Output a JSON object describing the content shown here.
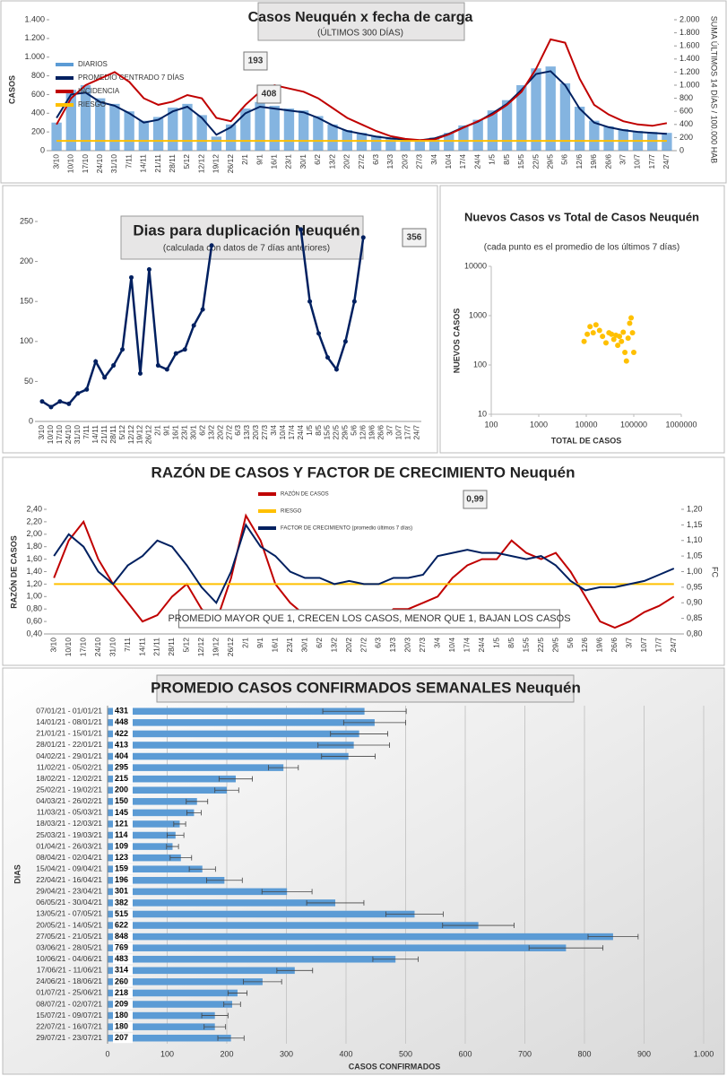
{
  "chart_data": [
    {
      "type": "line",
      "title": "Casos  Neuquén  x fecha  de carga",
      "subtitle": "(ÚLTIMOS 300 DÍAS)",
      "y_label": "CASOS",
      "y2_label": "SUMA  ÚLTIMOS 14 DÍAS / 100.000 HAB",
      "categories": [
        "3/10",
        "10/10",
        "17/10",
        "24/10",
        "31/10",
        "7/11",
        "14/11",
        "21/11",
        "28/11",
        "5/12",
        "12/12",
        "19/12",
        "26/12",
        "2/1",
        "9/1",
        "16/1",
        "23/1",
        "30/1",
        "6/2",
        "13/2",
        "20/2",
        "27/2",
        "6/3",
        "13/3",
        "20/3",
        "27/3",
        "3/4",
        "10/4",
        "17/4",
        "24/4",
        "1/5",
        "8/5",
        "15/5",
        "22/5",
        "29/5",
        "5/6",
        "12/6",
        "19/6",
        "26/6",
        "3/7",
        "10/7",
        "17/7",
        "24/7"
      ],
      "ylim": [
        0,
        1400
      ],
      "yticks": [
        0,
        200,
        400,
        600,
        800,
        {
          "value": 1000,
          "label": "1.000"
        },
        {
          "value": 1200,
          "label": "1.200"
        },
        {
          "value": 1400,
          "label": "1.400"
        }
      ],
      "y2lim": [
        0,
        2000
      ],
      "y2ticks": [
        0,
        200,
        400,
        600,
        800,
        {
          "value": 1000,
          "label": "1.000"
        },
        {
          "value": 1200,
          "label": "1.200"
        },
        {
          "value": 1400,
          "label": "1.400"
        },
        {
          "value": 1600,
          "label": "1.600"
        },
        {
          "value": 1800,
          "label": "1.800"
        },
        {
          "value": 2000,
          "label": "2.000"
        }
      ],
      "annotations": [
        "193",
        "408"
      ],
      "series": [
        {
          "name": "DIARIOS",
          "kind": "bar",
          "color": "#5b9bd5",
          "values": [
            300,
            650,
            700,
            560,
            500,
            420,
            320,
            360,
            460,
            500,
            380,
            150,
            280,
            450,
            520,
            480,
            450,
            430,
            370,
            280,
            220,
            190,
            160,
            140,
            120,
            110,
            140,
            190,
            270,
            330,
            430,
            540,
            700,
            880,
            900,
            720,
            470,
            320,
            260,
            230,
            210,
            200,
            190
          ]
        },
        {
          "name": "PROMEDIO CENTRADO 7 DÍAS",
          "color": "#002060",
          "values": [
            350,
            600,
            620,
            520,
            480,
            400,
            300,
            330,
            420,
            470,
            350,
            170,
            250,
            400,
            470,
            450,
            430,
            410,
            350,
            270,
            210,
            180,
            150,
            130,
            120,
            110,
            130,
            180,
            250,
            310,
            400,
            500,
            650,
            820,
            850,
            700,
            450,
            300,
            250,
            220,
            200,
            190,
            180
          ]
        },
        {
          "name": "INCIDENCIA",
          "color": "#c00000",
          "axis": "y2",
          "values": [
            400,
            800,
            1000,
            1100,
            1200,
            1050,
            800,
            700,
            750,
            850,
            800,
            500,
            450,
            700,
            900,
            1000,
            950,
            900,
            800,
            650,
            500,
            400,
            300,
            220,
            180,
            160,
            170,
            250,
            350,
            450,
            550,
            700,
            900,
            1250,
            1700,
            1650,
            1100,
            700,
            550,
            450,
            400,
            380,
            420
          ]
        },
        {
          "name": "RIESGO",
          "color": "#ffc000",
          "axis": "y2",
          "values": [
            150,
            150,
            150,
            150,
            150,
            150,
            150,
            150,
            150,
            150,
            150,
            150,
            150,
            150,
            150,
            150,
            150,
            150,
            150,
            150,
            150,
            150,
            150,
            150,
            150,
            150,
            150,
            150,
            150,
            150,
            150,
            150,
            150,
            150,
            150,
            150,
            150,
            150,
            150,
            150,
            150,
            150,
            150
          ]
        }
      ]
    },
    {
      "type": "line",
      "title": "Dias para duplicación Neuquén",
      "subtitle": "(calculada con datos de 7 días anteriores)",
      "categories": [
        "3/10",
        "10/10",
        "17/10",
        "24/10",
        "31/10",
        "7/11",
        "14/11",
        "21/11",
        "28/11",
        "5/12",
        "12/12",
        "19/12",
        "26/12",
        "2/1",
        "9/1",
        "16/1",
        "23/1",
        "30/1",
        "6/2",
        "13/2",
        "20/2",
        "27/2",
        "6/3",
        "13/3",
        "20/3",
        "27/3",
        "3/4",
        "10/4",
        "17/4",
        "24/4",
        "1/5",
        "8/5",
        "15/5",
        "22/5",
        "29/5",
        "5/6",
        "12/6",
        "19/6",
        "26/6",
        "3/7",
        "10/7",
        "17/7",
        "24/7"
      ],
      "ylim": [
        0,
        250
      ],
      "yticks": [
        0,
        50,
        100,
        150,
        200,
        250
      ],
      "annotations": [
        "356"
      ],
      "series": [
        {
          "color": "#002060",
          "values": [
            25,
            18,
            25,
            22,
            35,
            40,
            75,
            55,
            70,
            90,
            180,
            60,
            190,
            70,
            65,
            85,
            90,
            120,
            140,
            220,
            null,
            null,
            null,
            null,
            null,
            null,
            null,
            null,
            null,
            240,
            150,
            110,
            80,
            65,
            100,
            150,
            230,
            null,
            null,
            null,
            null,
            null,
            null
          ]
        }
      ]
    },
    {
      "type": "scatter",
      "title": "Nuevos Casos vs Total de Casos Neuquén",
      "subtitle": "(cada punto es el promedio de los últimos 7 días)",
      "x_label": "TOTAL DE CASOS",
      "y_label": "NUEVOS CASOS",
      "log_scale": true,
      "color": "#ffc000",
      "xlim": [
        100,
        1000000
      ],
      "xticks": [
        100,
        1000,
        10000,
        100000,
        1000000
      ],
      "ylim": [
        10,
        10000
      ],
      "yticks": [
        10,
        100,
        1000,
        10000
      ],
      "x": [
        9000,
        10500,
        12000,
        14000,
        16000,
        19000,
        22000,
        26000,
        30000,
        34000,
        38000,
        42000,
        46000,
        50000,
        55000,
        60000,
        65000,
        70000,
        76000,
        82000,
        88000,
        94000,
        100000
      ],
      "y": [
        300,
        420,
        600,
        450,
        650,
        500,
        380,
        280,
        450,
        420,
        330,
        400,
        250,
        380,
        300,
        460,
        180,
        120,
        350,
        700,
        900,
        450,
        180
      ]
    },
    {
      "type": "line",
      "title": "RAZÓN DE CASOS Y FACTOR DE CRECIMIENTO Neuquén",
      "y_label": "RAZÓN DE CASOS",
      "y2_label": "FC",
      "categories": [
        "3/10",
        "10/10",
        "17/10",
        "24/10",
        "31/10",
        "7/11",
        "14/11",
        "21/11",
        "28/11",
        "5/12",
        "12/12",
        "19/12",
        "26/12",
        "2/1",
        "9/1",
        "16/1",
        "23/1",
        "30/1",
        "6/2",
        "13/2",
        "20/2",
        "27/2",
        "6/3",
        "13/3",
        "20/3",
        "27/3",
        "3/4",
        "10/4",
        "17/4",
        "24/4",
        "1/5",
        "8/5",
        "15/5",
        "22/5",
        "29/5",
        "5/6",
        "12/6",
        "19/6",
        "26/6",
        "3/7",
        "10/7",
        "17/7",
        "24/7"
      ],
      "ylim": [
        0.4,
        2.4
      ],
      "yticks": [
        {
          "value": 0.4,
          "label": "0,40"
        },
        {
          "value": 0.6,
          "label": "0,60"
        },
        {
          "value": 0.8,
          "label": "0,80"
        },
        {
          "value": 1.0,
          "label": "1,00"
        },
        {
          "value": 1.2,
          "label": "1,20"
        },
        {
          "value": 1.4,
          "label": "1,40"
        },
        {
          "value": 1.6,
          "label": "1,60"
        },
        {
          "value": 1.8,
          "label": "1,80"
        },
        {
          "value": 2.0,
          "label": "2,00"
        },
        {
          "value": 2.2,
          "label": "2,20"
        },
        {
          "value": 2.4,
          "label": "2,40"
        }
      ],
      "y2lim": [
        0.8,
        1.2
      ],
      "y2ticks": [
        {
          "value": 0.8,
          "label": "0,80"
        },
        {
          "value": 0.85,
          "label": "0,85"
        },
        {
          "value": 0.9,
          "label": "0,90"
        },
        {
          "value": 0.95,
          "label": "0,95"
        },
        {
          "value": 1.0,
          "label": "1,00"
        },
        {
          "value": 1.05,
          "label": "1,05"
        },
        {
          "value": 1.1,
          "label": "1,10"
        },
        {
          "value": 1.15,
          "label": "1,15"
        },
        {
          "value": 1.2,
          "label": "1,20"
        }
      ],
      "annotations": [
        "0,99",
        "PROMEDIO MAYOR QUE 1, CRECEN LOS CASOS, MENOR QUE 1, BAJAN LOS CASOS"
      ],
      "series": [
        {
          "name": "RAZÓN DE CASOS",
          "color": "#c00000",
          "values": [
            1.3,
            1.9,
            2.2,
            1.6,
            1.2,
            0.9,
            0.6,
            0.7,
            1.0,
            1.2,
            0.8,
            0.6,
            1.3,
            2.3,
            1.9,
            1.2,
            0.9,
            0.7,
            0.7,
            0.6,
            0.6,
            0.6,
            0.6,
            0.8,
            0.8,
            0.9,
            1.0,
            1.3,
            1.5,
            1.6,
            1.6,
            1.9,
            1.7,
            1.6,
            1.7,
            1.4,
            1.0,
            0.6,
            0.5,
            0.6,
            0.75,
            0.85,
            1.0
          ]
        },
        {
          "name": "RIESGO",
          "color": "#ffc000",
          "values": [
            1.2,
            1.2,
            1.2,
            1.2,
            1.2,
            1.2,
            1.2,
            1.2,
            1.2,
            1.2,
            1.2,
            1.2,
            1.2,
            1.2,
            1.2,
            1.2,
            1.2,
            1.2,
            1.2,
            1.2,
            1.2,
            1.2,
            1.2,
            1.2,
            1.2,
            1.2,
            1.2,
            1.2,
            1.2,
            1.2,
            1.2,
            1.2,
            1.2,
            1.2,
            1.2,
            1.2,
            1.2,
            1.2,
            1.2,
            1.2,
            1.2,
            1.2,
            1.2
          ]
        },
        {
          "name": "FACTOR DE CRECIMIENTO (promedio últimos 7 días)",
          "color": "#002060",
          "axis": "y2",
          "values": [
            1.05,
            1.12,
            1.08,
            1.0,
            0.96,
            1.02,
            1.05,
            1.1,
            1.08,
            1.02,
            0.95,
            0.9,
            1.0,
            1.15,
            1.08,
            1.05,
            1.0,
            0.98,
            0.98,
            0.96,
            0.97,
            0.96,
            0.96,
            0.98,
            0.98,
            0.99,
            1.05,
            1.06,
            1.07,
            1.06,
            1.06,
            1.05,
            1.04,
            1.05,
            1.02,
            0.97,
            0.94,
            0.95,
            0.95,
            0.96,
            0.97,
            0.99,
            1.01
          ]
        }
      ]
    },
    {
      "type": "bar",
      "orientation": "horizontal",
      "title": "PROMEDIO CASOS CONFIRMADOS SEMANALES Neuquén",
      "x_label": "CASOS CONFIRMADOS",
      "y_label": "DIAS",
      "color": "#5b9bd5",
      "grid": true,
      "categories": [
        "07/01/21 - 01/01/21",
        "14/01/21 - 08/01/21",
        "21/01/21 - 15/01/21",
        "28/01/21 - 22/01/21",
        "04/02/21 - 29/01/21",
        "11/02/21 - 05/02/21",
        "18/02/21 - 12/02/21",
        "25/02/21 - 19/02/21",
        "04/03/21 - 26/02/21",
        "11/03/21 - 05/03/21",
        "18/03/21 - 12/03/21",
        "25/03/21 - 19/03/21",
        "01/04/21 - 26/03/21",
        "08/04/21 - 02/04/21",
        "15/04/21 - 09/04/21",
        "22/04/21 - 16/04/21",
        "29/04/21 - 23/04/21",
        "06/05/21 - 30/04/21",
        "13/05/21 - 07/05/21",
        "20/05/21 - 14/05/21",
        "27/05/21 - 21/05/21",
        "03/06/21 - 28/05/21",
        "10/06/21 - 04/06/21",
        "17/06/21 - 11/06/21",
        "24/06/21 - 18/06/21",
        "01/07/21 - 25/06/21",
        "08/07/21 - 02/07/21",
        "15/07/21 - 09/07/21",
        "22/07/21 - 16/07/21",
        "29/07/21 - 23/07/21"
      ],
      "values": [
        431,
        448,
        422,
        413,
        404,
        295,
        215,
        200,
        150,
        145,
        121,
        114,
        109,
        123,
        159,
        196,
        301,
        382,
        515,
        622,
        848,
        769,
        483,
        314,
        260,
        218,
        209,
        180,
        180,
        207
      ],
      "errors": [
        70,
        52,
        48,
        60,
        45,
        25,
        28,
        20,
        18,
        12,
        10,
        14,
        10,
        18,
        22,
        30,
        42,
        48,
        48,
        60,
        42,
        62,
        38,
        30,
        32,
        16,
        14,
        22,
        18,
        22
      ],
      "xlim": [
        0,
        1000
      ],
      "xticks": [
        0,
        100,
        200,
        300,
        400,
        500,
        600,
        700,
        800,
        900,
        {
          "value": 1000,
          "label": "1.000"
        }
      ]
    }
  ]
}
